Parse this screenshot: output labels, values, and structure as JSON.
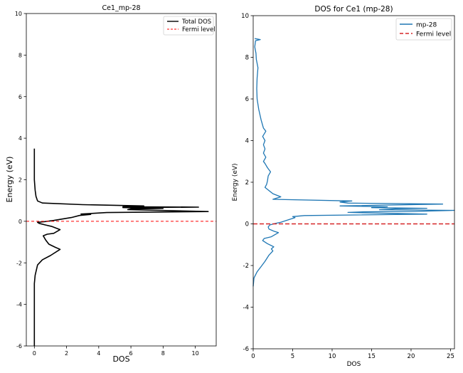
{
  "chart_data": [
    {
      "type": "line",
      "title": "Ce1_mp-28",
      "xlabel": "DOS",
      "ylabel": "Energy (eV)",
      "xlim": [
        -0.5,
        11.3
      ],
      "ylim": [
        -6,
        10
      ],
      "xticks": [
        "0",
        "2",
        "4",
        "6",
        "8",
        "10"
      ],
      "yticks": [
        "-6",
        "-4",
        "-2",
        "0",
        "2",
        "4",
        "6",
        "8",
        "10"
      ],
      "grid": false,
      "legend_position": "top-right",
      "legend": [
        {
          "label": "Total DOS",
          "color": "#000000",
          "style": "solid"
        },
        {
          "label": "Fermi level",
          "color": "#ff0000",
          "style": "dashed"
        }
      ],
      "fermi_level": 0,
      "series": [
        {
          "color": "#000000",
          "points": [
            [
              0.0,
              -6.0
            ],
            [
              0.0,
              -5.0
            ],
            [
              0.0,
              -4.0
            ],
            [
              0.0,
              -3.0
            ],
            [
              0.05,
              -2.6
            ],
            [
              0.2,
              -2.1
            ],
            [
              0.5,
              -1.85
            ],
            [
              1.0,
              -1.65
            ],
            [
              1.6,
              -1.35
            ],
            [
              1.3,
              -1.25
            ],
            [
              0.9,
              -1.1
            ],
            [
              0.7,
              -0.9
            ],
            [
              0.55,
              -0.7
            ],
            [
              0.8,
              -0.62
            ],
            [
              1.2,
              -0.58
            ],
            [
              1.6,
              -0.4
            ],
            [
              1.1,
              -0.25
            ],
            [
              0.7,
              -0.18
            ],
            [
              0.3,
              -0.1
            ],
            [
              0.2,
              -0.05
            ],
            [
              0.6,
              -0.02
            ],
            [
              1.2,
              0.04
            ],
            [
              1.8,
              0.12
            ],
            [
              2.3,
              0.18
            ],
            [
              2.8,
              0.28
            ],
            [
              3.5,
              0.33
            ],
            [
              2.9,
              0.35
            ],
            [
              4.5,
              0.42
            ],
            [
              10.8,
              0.47
            ],
            [
              5.8,
              0.56
            ],
            [
              6.0,
              0.6
            ],
            [
              8.0,
              0.62
            ],
            [
              5.5,
              0.66
            ],
            [
              10.2,
              0.68
            ],
            [
              5.5,
              0.7
            ],
            [
              6.8,
              0.74
            ],
            [
              3.0,
              0.8
            ],
            [
              0.5,
              0.88
            ],
            [
              0.2,
              0.98
            ],
            [
              0.1,
              1.2
            ],
            [
              0.05,
              1.5
            ],
            [
              0.0,
              2.0
            ],
            [
              0.0,
              2.8
            ],
            [
              0.0,
              3.5
            ]
          ]
        }
      ]
    },
    {
      "type": "line",
      "title": "DOS for Ce1 (mp-28)",
      "xlabel": "DOS",
      "ylabel": "Energy (eV)",
      "xlim": [
        0,
        25.5
      ],
      "ylim": [
        -6,
        10
      ],
      "xticks": [
        "0",
        "5",
        "10",
        "15",
        "20",
        "25"
      ],
      "yticks": [
        "-6",
        "-4",
        "-2",
        "0",
        "2",
        "4",
        "6",
        "8",
        "10"
      ],
      "grid": false,
      "legend_position": "top-right",
      "legend": [
        {
          "label": "mp-28",
          "color": "#1f77b4",
          "style": "solid"
        },
        {
          "label": "Fermi level",
          "color": "#d62728",
          "style": "dashed"
        }
      ],
      "fermi_level": 0,
      "series": [
        {
          "name": "mp-28",
          "color": "#1f77b4",
          "points": [
            [
              0.0,
              -3.0
            ],
            [
              0.1,
              -2.6
            ],
            [
              0.5,
              -2.3
            ],
            [
              1.0,
              -2.05
            ],
            [
              1.5,
              -1.8
            ],
            [
              2.0,
              -1.5
            ],
            [
              2.5,
              -1.3
            ],
            [
              2.3,
              -1.2
            ],
            [
              2.6,
              -1.1
            ],
            [
              1.8,
              -0.95
            ],
            [
              1.2,
              -0.8
            ],
            [
              1.4,
              -0.7
            ],
            [
              2.3,
              -0.62
            ],
            [
              3.2,
              -0.42
            ],
            [
              2.6,
              -0.35
            ],
            [
              2.0,
              -0.25
            ],
            [
              1.9,
              -0.15
            ],
            [
              2.1,
              -0.05
            ],
            [
              2.8,
              0.02
            ],
            [
              3.5,
              0.08
            ],
            [
              4.5,
              0.2
            ],
            [
              5.3,
              0.3
            ],
            [
              5.0,
              0.35
            ],
            [
              6.5,
              0.4
            ],
            [
              22.0,
              0.47
            ],
            [
              12.0,
              0.55
            ],
            [
              14.0,
              0.58
            ],
            [
              20.5,
              0.6
            ],
            [
              25.5,
              0.65
            ],
            [
              16.0,
              0.68
            ],
            [
              18.0,
              0.72
            ],
            [
              22.0,
              0.75
            ],
            [
              15.0,
              0.78
            ],
            [
              17.0,
              0.82
            ],
            [
              11.0,
              0.86
            ],
            [
              24.0,
              0.95
            ],
            [
              12.0,
              1.0
            ],
            [
              11.0,
              1.05
            ],
            [
              12.5,
              1.1
            ],
            [
              2.5,
              1.18
            ],
            [
              3.5,
              1.3
            ],
            [
              2.5,
              1.45
            ],
            [
              2.0,
              1.6
            ],
            [
              1.5,
              1.75
            ],
            [
              1.7,
              1.9
            ],
            [
              1.8,
              2.05
            ],
            [
              1.9,
              2.3
            ],
            [
              2.2,
              2.5
            ],
            [
              1.8,
              2.7
            ],
            [
              1.5,
              2.9
            ],
            [
              1.3,
              3.0
            ],
            [
              1.6,
              3.2
            ],
            [
              1.3,
              3.4
            ],
            [
              1.5,
              3.6
            ],
            [
              1.3,
              3.8
            ],
            [
              1.5,
              4.0
            ],
            [
              1.2,
              4.2
            ],
            [
              1.6,
              4.45
            ],
            [
              1.3,
              4.6
            ],
            [
              1.0,
              5.0
            ],
            [
              0.7,
              5.5
            ],
            [
              0.5,
              6.0
            ],
            [
              0.45,
              6.5
            ],
            [
              0.5,
              7.0
            ],
            [
              0.6,
              7.5
            ],
            [
              0.4,
              7.9
            ],
            [
              0.35,
              8.2
            ],
            [
              0.2,
              8.5
            ],
            [
              0.3,
              8.8
            ],
            [
              0.9,
              8.85
            ],
            [
              0.2,
              8.9
            ]
          ]
        }
      ]
    }
  ]
}
